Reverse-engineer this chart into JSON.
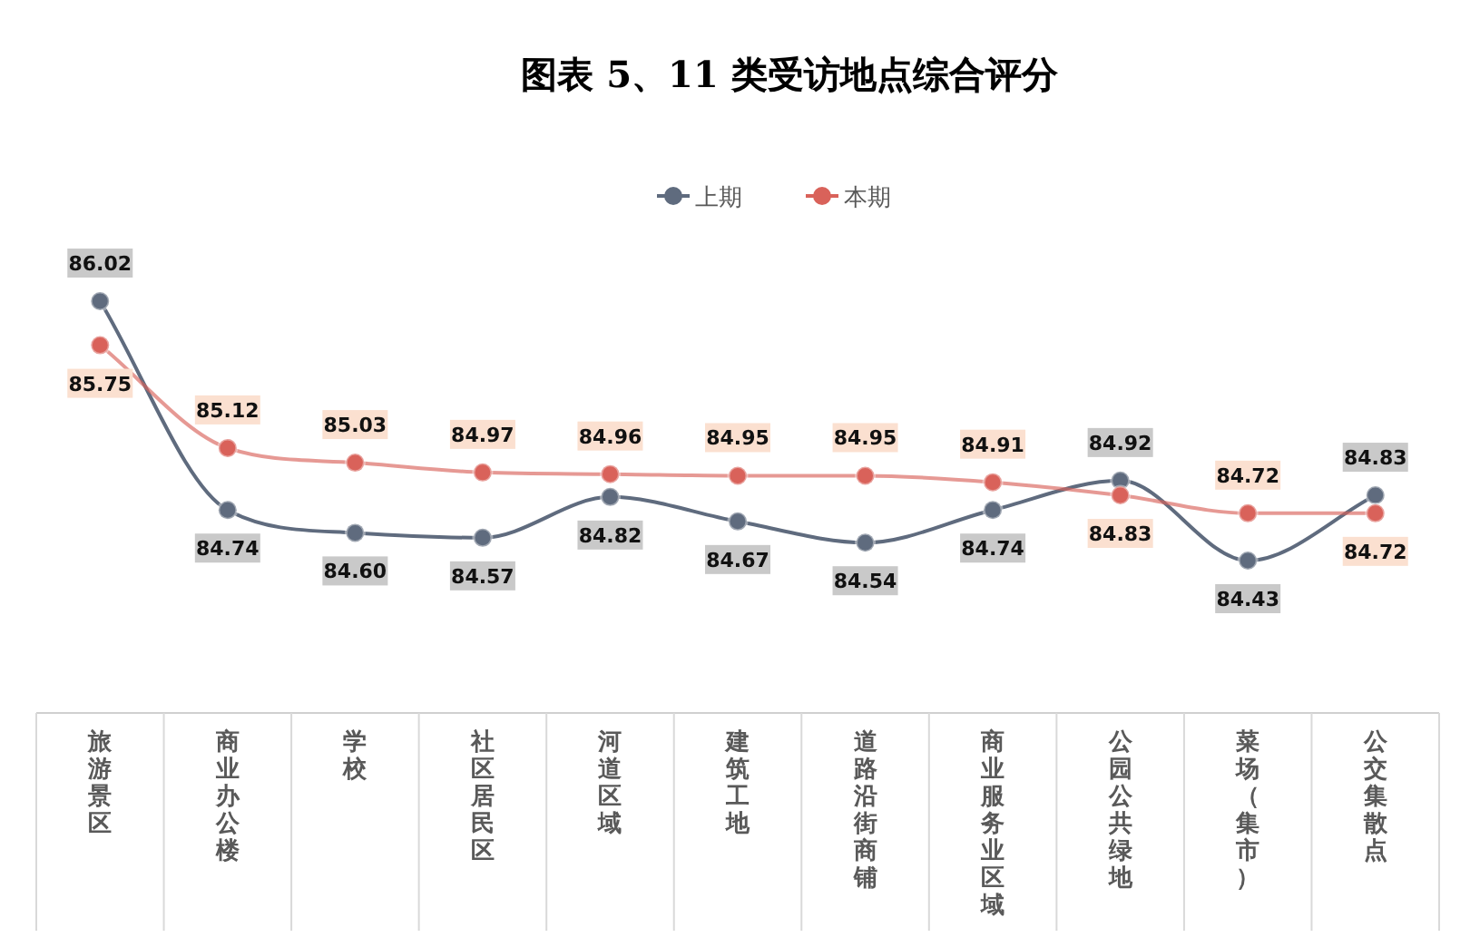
{
  "chart_data": {
    "type": "line",
    "title": "图表 5、11 类受访地点综合评分",
    "categories": [
      "旅游景区",
      "商业办公楼",
      "学校",
      "社区居民区",
      "河道区域",
      "建筑工地",
      "道路沿街商铺",
      "商业服务业区域",
      "公园公共绿地",
      "菜场（集市）",
      "公交集散点"
    ],
    "series": [
      {
        "name": "上期",
        "color": "#5f6b7e",
        "values": [
          86.02,
          84.74,
          84.6,
          84.57,
          84.82,
          84.67,
          84.54,
          84.74,
          84.92,
          84.43,
          84.83
        ],
        "value_labels": [
          "86.02",
          "84.74",
          "84.60",
          "84.57",
          "84.82",
          "84.67",
          "84.54",
          "84.74",
          "84.92",
          "84.43",
          "84.83"
        ]
      },
      {
        "name": "本期",
        "color": "#d9625a",
        "values": [
          85.75,
          85.12,
          85.03,
          84.97,
          84.96,
          84.95,
          84.95,
          84.91,
          84.83,
          84.72,
          84.72
        ],
        "value_labels": [
          "85.75",
          "85.12",
          "85.03",
          "84.97",
          "84.96",
          "84.95",
          "84.95",
          "84.91",
          "84.83",
          "84.72",
          "84.72"
        ]
      }
    ],
    "legend": "top",
    "marker": "circle",
    "line_style": "solid"
  }
}
